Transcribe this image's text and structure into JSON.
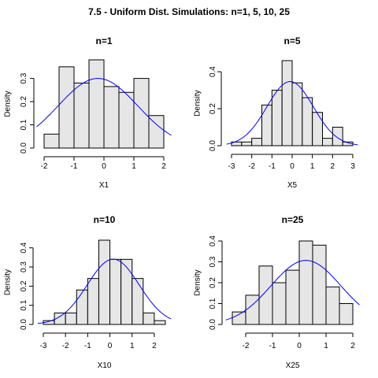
{
  "figure": {
    "title": "7.5 - Uniform Dist. Simulations: n=1, 5, 10, 25"
  },
  "chart_data": [
    {
      "type": "bar",
      "title": "n=1",
      "xlabel": "X1",
      "ylabel": "Density",
      "bin_edges": [
        -2,
        -1.5,
        -1,
        -0.5,
        0,
        0.5,
        1,
        1.5,
        2
      ],
      "values": [
        0.06,
        0.35,
        0.28,
        0.38,
        0.265,
        0.24,
        0.3,
        0.14
      ],
      "xlim": [
        -2,
        2
      ],
      "ylim": [
        0,
        0.38
      ],
      "xticks": [
        -2,
        -1,
        0,
        1,
        2
      ],
      "yticks": [
        0.0,
        0.1,
        0.2,
        0.3
      ],
      "ytick_labels": [
        "0.0",
        "0.1",
        "0.2",
        "0.3"
      ],
      "curve": {
        "type": "normal_density",
        "mean": -0.2,
        "sd": 1.33,
        "color": "#0000ff"
      }
    },
    {
      "type": "bar",
      "title": "n=5",
      "xlabel": "X5",
      "ylabel": "Density",
      "bin_edges": [
        -3,
        -2.5,
        -2,
        -1.5,
        -1,
        -0.5,
        0,
        0.5,
        1,
        1.5,
        2,
        2.5,
        3
      ],
      "values": [
        0.02,
        0.02,
        0.04,
        0.22,
        0.3,
        0.46,
        0.34,
        0.26,
        0.18,
        0.04,
        0.1,
        0.02
      ],
      "xlim": [
        -3,
        3
      ],
      "ylim": [
        0,
        0.46
      ],
      "xticks": [
        -3,
        -2,
        -1,
        0,
        1,
        2,
        3
      ],
      "yticks": [
        0.0,
        0.2,
        0.4
      ],
      "ytick_labels": [
        "0.0",
        "0.2",
        "0.4"
      ],
      "curve": {
        "type": "normal_density",
        "mean": -0.1,
        "sd": 1.15,
        "color": "#0000ff"
      }
    },
    {
      "type": "bar",
      "title": "n=10",
      "xlabel": "X10",
      "ylabel": "Density",
      "bin_edges": [
        -3,
        -2.5,
        -2,
        -1.5,
        -1,
        -0.5,
        0,
        0.5,
        1,
        1.5,
        2,
        2.5
      ],
      "values": [
        0.02,
        0.06,
        0.06,
        0.18,
        0.24,
        0.44,
        0.34,
        0.34,
        0.24,
        0.06,
        0.02
      ],
      "xlim": [
        -3,
        2.5
      ],
      "ylim": [
        0,
        0.44
      ],
      "xticks": [
        -3,
        -2,
        -1,
        0,
        1,
        2
      ],
      "yticks": [
        0.0,
        0.1,
        0.2,
        0.3,
        0.4
      ],
      "ytick_labels": [
        "0.0",
        "0.1",
        "0.2",
        "0.3",
        "0.4"
      ],
      "curve": {
        "type": "normal_density",
        "mean": 0.15,
        "sd": 1.17,
        "color": "#0000ff"
      }
    },
    {
      "type": "bar",
      "title": "n=25",
      "xlabel": "X25",
      "ylabel": "Density",
      "bin_edges": [
        -2.5,
        -2,
        -1.5,
        -1,
        -0.5,
        0,
        0.5,
        1,
        1.5,
        2
      ],
      "values": [
        0.06,
        0.14,
        0.28,
        0.2,
        0.26,
        0.4,
        0.38,
        0.18,
        0.1
      ],
      "xlim": [
        -2.5,
        2
      ],
      "ylim": [
        0,
        0.4
      ],
      "xticks": [
        -2,
        -1,
        0,
        1,
        2
      ],
      "yticks": [
        0.0,
        0.1,
        0.2,
        0.3,
        0.4
      ],
      "ytick_labels": [
        "0.0",
        "0.1",
        "0.2",
        "0.3",
        "0.4"
      ],
      "curve": {
        "type": "normal_density",
        "mean": 0.25,
        "sd": 1.3,
        "color": "#0000ff"
      }
    }
  ]
}
